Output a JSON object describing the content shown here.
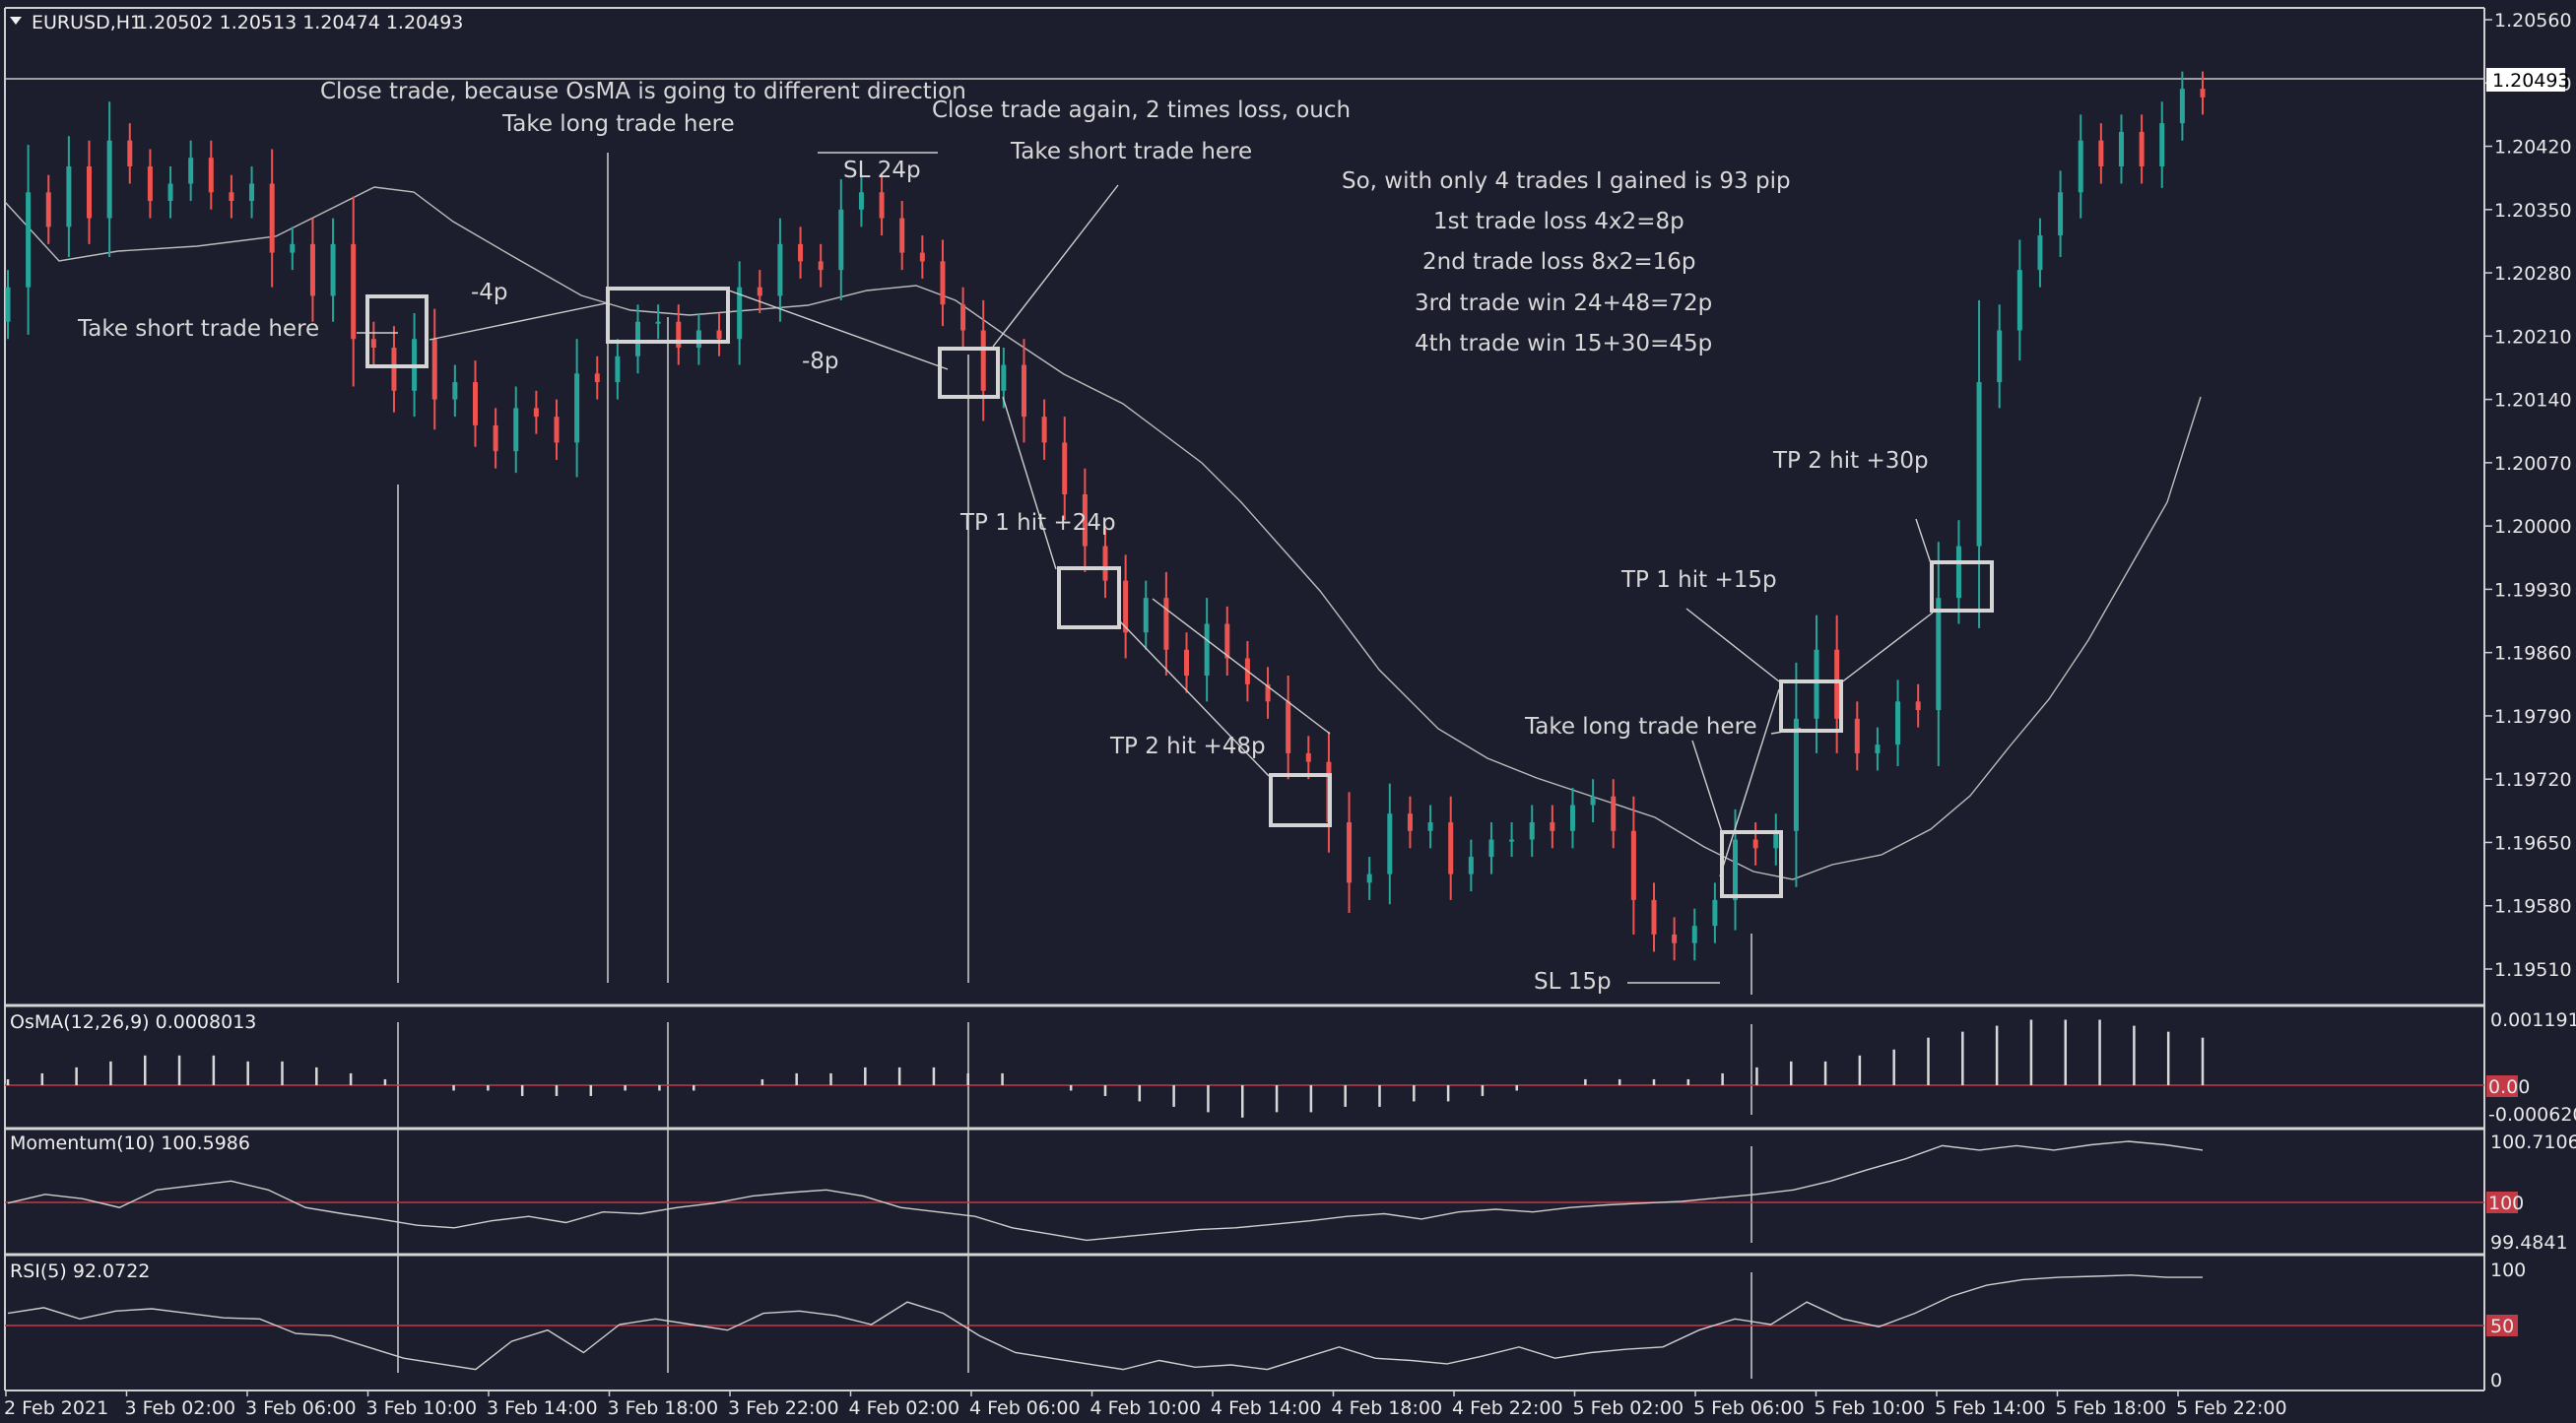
{
  "header": {
    "symbol": "EURUSD,H1",
    "ohlc": "1.20502 1.20513 1.20474 1.20493"
  },
  "colors": {
    "background": "#1c1e2d",
    "bull": "#26a69a",
    "bear": "#ef5350",
    "grid_line": "#d0d0d0",
    "level_line": "#c23a45",
    "annotation": "#d8d8d8"
  },
  "chart_data": [
    {
      "type": "candlestick",
      "title": "EURUSD,H1",
      "timeframe": "H1",
      "price_axis_ticks": [
        "1.20560",
        "1.20490",
        "1.20420",
        "1.20350",
        "1.20280",
        "1.20210",
        "1.20140",
        "1.20070",
        "1.20000",
        "1.19930",
        "1.19860",
        "1.19790",
        "1.19720",
        "1.19650",
        "1.19580",
        "1.19510"
      ],
      "current_price": "1.20493",
      "ylim": [
        1.1948,
        1.2058
      ],
      "x_ticks": [
        "2 Feb 2021",
        "3 Feb 02:00",
        "3 Feb 06:00",
        "3 Feb 10:00",
        "3 Feb 14:00",
        "3 Feb 18:00",
        "3 Feb 22:00",
        "4 Feb 02:00",
        "4 Feb 06:00",
        "4 Feb 10:00",
        "4 Feb 14:00",
        "4 Feb 18:00",
        "4 Feb 22:00",
        "5 Feb 02:00",
        "5 Feb 06:00",
        "5 Feb 10:00",
        "5 Feb 14:00",
        "5 Feb 18:00",
        "5 Feb 22:00"
      ],
      "closes": [
        1.2027,
        1.2038,
        1.2034,
        1.2041,
        1.2035,
        1.2044,
        1.2041,
        1.2037,
        1.2039,
        1.2042,
        1.2038,
        1.2037,
        1.2039,
        1.2031,
        1.2032,
        1.2026,
        1.2032,
        1.2021,
        1.202,
        1.2015,
        1.2021,
        1.2014,
        1.2016,
        1.2011,
        1.2008,
        1.2013,
        1.2012,
        1.2009,
        1.2017,
        1.2016,
        1.2019,
        1.2023,
        1.2023,
        1.202,
        1.2022,
        1.2021,
        1.2027,
        1.2026,
        1.2032,
        1.203,
        1.2029,
        1.2036,
        1.2038,
        1.2035,
        1.2031,
        1.203,
        1.2025,
        1.2022,
        1.2015,
        1.2018,
        1.2012,
        1.2009,
        1.2003,
        1.1997,
        1.1993,
        1.1987,
        1.1991,
        1.1985,
        1.1982,
        1.1988,
        1.1984,
        1.1981,
        1.1979,
        1.1973,
        1.1972,
        1.1965,
        1.1958,
        1.1959,
        1.1966,
        1.1964,
        1.1965,
        1.1959,
        1.1961,
        1.1963,
        1.1963,
        1.1965,
        1.1964,
        1.1967,
        1.1968,
        1.1964,
        1.1956,
        1.1952,
        1.1951,
        1.1953,
        1.1956,
        1.1963,
        1.1962,
        1.1964,
        1.1977,
        1.1985,
        1.1977,
        1.1973,
        1.1974,
        1.1979,
        1.1978,
        1.1991,
        1.1997,
        1.2016,
        1.2022,
        1.2029,
        1.2033,
        1.2038,
        1.2044,
        1.2041,
        1.2045,
        1.2041,
        1.2046,
        1.205,
        1.2049
      ],
      "moving_average_label": "",
      "annotations": [
        "Close trade, because OsMA is going to different direction",
        "Take long trade here",
        "Close trade again, 2 times loss, ouch",
        "SL 24p",
        "Take short trade here",
        "Take short trade here",
        "-4p",
        "-8p",
        "So, with only 4 trades I gained is 93 pip",
        "1st trade loss 4x2=8p",
        "2nd trade loss 8x2=16p",
        "3rd trade win 24+48=72p",
        "4th trade win 15+30=45p",
        "TP 2 hit +30p",
        "TP 1 hit +15p",
        "TP 1 hit +24p",
        "TP 2 hit +48p",
        "Take long trade here",
        "SL 15p"
      ]
    },
    {
      "type": "histogram",
      "title": "OsMA(12,26,9) 0.0008013",
      "ticks": [
        "0.0011919",
        "0.00",
        "-0.0006207"
      ],
      "ylim": [
        -0.0006207,
        0.0011919
      ],
      "values": [
        0.0001,
        0.0002,
        0.0003,
        0.0004,
        0.0005,
        0.0005,
        0.0005,
        0.0004,
        0.0004,
        0.0003,
        0.0002,
        0.0001,
        0.0,
        -0.0001,
        -0.0001,
        -0.0002,
        -0.0002,
        -0.0002,
        -0.0001,
        -0.0001,
        -0.0001,
        0.0,
        0.0001,
        0.0002,
        0.0002,
        0.0003,
        0.0003,
        0.0003,
        0.0002,
        0.0002,
        0.0,
        -0.0001,
        -0.0002,
        -0.0003,
        -0.0004,
        -0.0005,
        -0.0006,
        -0.0005,
        -0.0005,
        -0.0004,
        -0.0004,
        -0.0003,
        -0.0003,
        -0.0002,
        -0.0001,
        0.0,
        0.0001,
        0.0001,
        0.0001,
        0.0001,
        0.0002,
        0.0003,
        0.0004,
        0.0004,
        0.0005,
        0.0006,
        0.0008,
        0.0009,
        0.001,
        0.0011,
        0.0011,
        0.0011,
        0.001,
        0.0009,
        0.0008
      ]
    },
    {
      "type": "line",
      "title": "Momentum(10) 100.5986",
      "ticks": [
        "100.7106",
        "100",
        "99.4841"
      ],
      "ylim": [
        99.4841,
        100.7106
      ],
      "values": [
        100.0,
        100.1,
        100.05,
        99.95,
        100.15,
        100.2,
        100.25,
        100.15,
        99.95,
        99.88,
        99.82,
        99.75,
        99.72,
        99.8,
        99.85,
        99.78,
        99.9,
        99.88,
        99.95,
        100.0,
        100.08,
        100.12,
        100.15,
        100.08,
        99.95,
        99.9,
        99.85,
        99.72,
        99.65,
        99.58,
        99.62,
        99.66,
        99.7,
        99.72,
        99.76,
        99.8,
        99.85,
        99.88,
        99.82,
        99.9,
        99.93,
        99.9,
        99.95,
        99.98,
        100.0,
        100.02,
        100.06,
        100.1,
        100.15,
        100.25,
        100.38,
        100.5,
        100.65,
        100.6,
        100.65,
        100.6,
        100.66,
        100.7,
        100.66,
        100.6
      ]
    },
    {
      "type": "line",
      "title": "RSI(5) 92.0722",
      "ticks": [
        "100",
        "50",
        "0"
      ],
      "ylim": [
        0,
        100
      ],
      "values": [
        60,
        65,
        55,
        62,
        64,
        60,
        56,
        55,
        42,
        40,
        30,
        20,
        15,
        10,
        35,
        45,
        25,
        50,
        55,
        50,
        45,
        60,
        62,
        58,
        50,
        70,
        60,
        40,
        25,
        20,
        15,
        10,
        18,
        12,
        14,
        10,
        20,
        30,
        20,
        18,
        15,
        22,
        30,
        20,
        25,
        28,
        30,
        45,
        55,
        50,
        70,
        55,
        48,
        60,
        75,
        85,
        90,
        92,
        93,
        94,
        92,
        92
      ]
    }
  ]
}
